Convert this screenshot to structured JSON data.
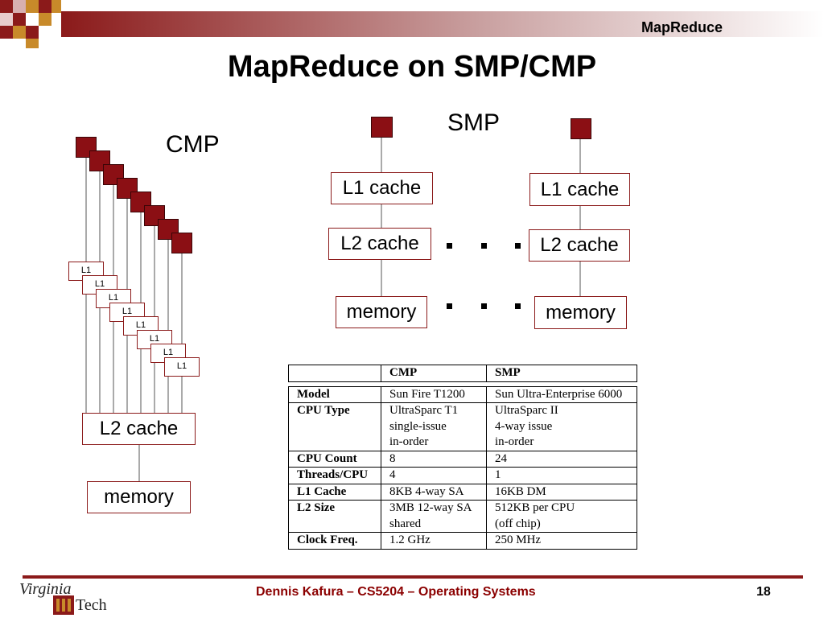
{
  "header": {
    "title": "MapReduce"
  },
  "slide": {
    "title": "MapReduce on SMP/CMP"
  },
  "cmp": {
    "label": "CMP",
    "l1_label": "L1",
    "l2_label": "L2 cache",
    "memory_label": "memory"
  },
  "smp": {
    "label": "SMP",
    "l1_label": "L1 cache",
    "l2_label": "L2 cache",
    "memory_label": "memory"
  },
  "table": {
    "headers": [
      "",
      "CMP",
      "SMP"
    ],
    "rows": [
      {
        "label": "Model",
        "cmp": [
          "Sun Fire T1200"
        ],
        "smp": [
          "Sun Ultra-Enterprise 6000"
        ]
      },
      {
        "label": "CPU Type",
        "cmp": [
          "UltraSparc T1",
          "single-issue",
          "in-order"
        ],
        "smp": [
          "UltraSparc II",
          "4-way issue",
          "in-order"
        ]
      },
      {
        "label": "CPU Count",
        "cmp": [
          "8"
        ],
        "smp": [
          "24"
        ]
      },
      {
        "label": "Threads/CPU",
        "cmp": [
          "4"
        ],
        "smp": [
          "1"
        ]
      },
      {
        "label": "L1 Cache",
        "cmp": [
          "8KB 4-way SA"
        ],
        "smp": [
          "16KB DM"
        ]
      },
      {
        "label": "L2 Size",
        "cmp": [
          "3MB 12-way SA",
          "shared"
        ],
        "smp": [
          "512KB per CPU",
          "(off chip)"
        ]
      },
      {
        "label": "Clock Freq.",
        "cmp": [
          "1.2 GHz"
        ],
        "smp": [
          "250 MHz"
        ]
      }
    ]
  },
  "footer": {
    "text": "Dennis Kafura – CS5204 – Operating Systems",
    "page": "18",
    "logo_line1": "Virginia",
    "logo_line2": "Tech"
  },
  "colors": {
    "accent": "#8B1A1A",
    "cpu": "#8B0F14",
    "footer_text": "#8B0000"
  }
}
